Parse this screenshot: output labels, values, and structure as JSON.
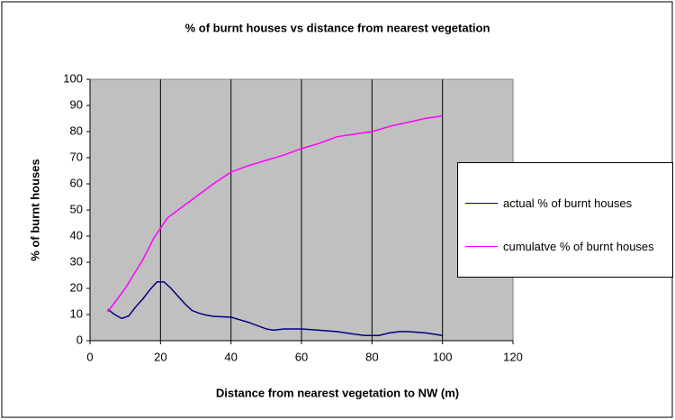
{
  "chart_data": {
    "type": "line",
    "title": "% of burnt houses vs distance from nearest vegetation",
    "x_label": "Distance from nearest vegetation to NW (m)",
    "y_label": "% of burnt houses",
    "xlim": [
      0,
      120
    ],
    "xticks": [
      0,
      20,
      40,
      60,
      80,
      100,
      120
    ],
    "ylim": [
      0,
      100
    ],
    "yticks": [
      0,
      10,
      20,
      30,
      40,
      50,
      60,
      70,
      80,
      90,
      100
    ],
    "grid": "x",
    "series": [
      {
        "name": "actual % of burnt houses",
        "color": "#000080",
        "x": [
          5,
          7,
          9,
          11,
          13,
          15,
          17,
          19,
          21,
          23,
          25,
          27,
          29,
          31,
          33,
          35,
          40,
          45,
          50,
          52,
          55,
          60,
          65,
          70,
          75,
          78,
          80,
          82,
          85,
          88,
          90,
          95,
          100
        ],
        "values": [
          12,
          10,
          8.5,
          9.5,
          13,
          16,
          19.5,
          22.5,
          22.5,
          20,
          17,
          14,
          11.5,
          10.5,
          9.8,
          9.3,
          9,
          7,
          4.5,
          4,
          4.5,
          4.5,
          4,
          3.5,
          2.5,
          2,
          2,
          2,
          3,
          3.5,
          3.5,
          3,
          2
        ]
      },
      {
        "name": "cumulatve % of burnt houses",
        "color": "#ff00ff",
        "x": [
          5,
          10,
          15,
          18,
          20,
          22,
          25,
          30,
          35,
          40,
          45,
          50,
          55,
          60,
          65,
          70,
          75,
          80,
          85,
          90,
          95,
          100
        ],
        "values": [
          11,
          20,
          31,
          39,
          43,
          47,
          50,
          55,
          60,
          64.5,
          67,
          69,
          71,
          73.5,
          75.5,
          78,
          79,
          80,
          82,
          83.5,
          85,
          86
        ]
      }
    ]
  }
}
